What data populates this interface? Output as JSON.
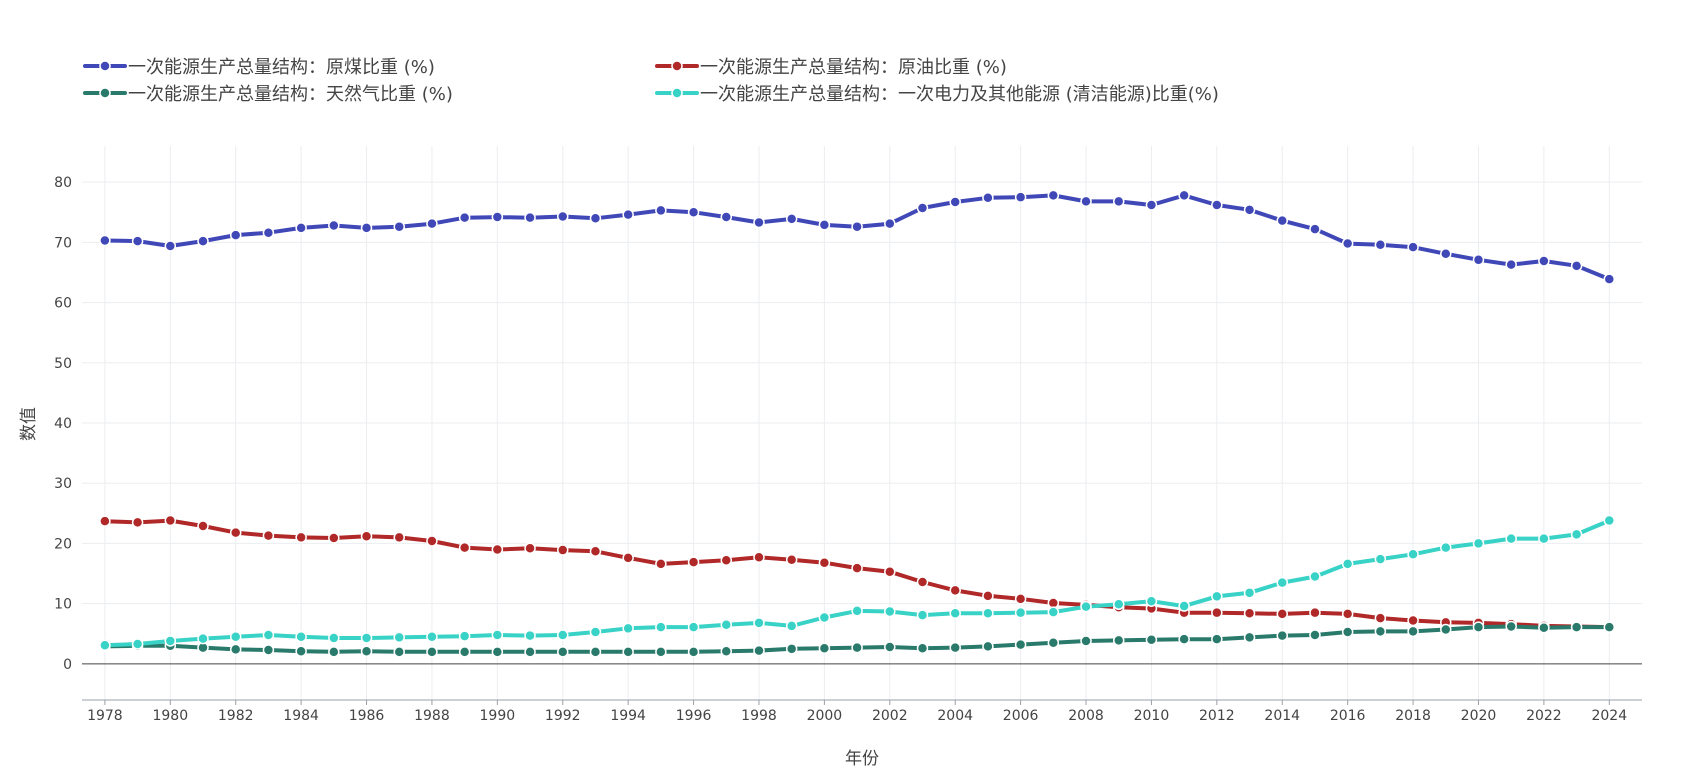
{
  "chart_data": {
    "type": "line",
    "xlabel": "年份",
    "ylabel": "数值",
    "ylim": [
      -6,
      86
    ],
    "yticks": [
      0,
      10,
      20,
      30,
      40,
      50,
      60,
      70,
      80
    ],
    "xlim": [
      1977.3,
      2025.0
    ],
    "xticks": [
      1978,
      1980,
      1982,
      1984,
      1986,
      1988,
      1990,
      1992,
      1994,
      1996,
      1998,
      2000,
      2002,
      2004,
      2006,
      2008,
      2010,
      2012,
      2014,
      2016,
      2018,
      2020,
      2022,
      2024
    ],
    "grid": true,
    "legend_position": "top",
    "x": [
      1978,
      1979,
      1980,
      1981,
      1982,
      1983,
      1984,
      1985,
      1986,
      1987,
      1988,
      1989,
      1990,
      1991,
      1992,
      1993,
      1994,
      1995,
      1996,
      1997,
      1998,
      1999,
      2000,
      2001,
      2002,
      2003,
      2004,
      2005,
      2006,
      2007,
      2008,
      2009,
      2010,
      2011,
      2012,
      2013,
      2014,
      2015,
      2016,
      2017,
      2018,
      2019,
      2020,
      2021,
      2022,
      2023,
      2024
    ],
    "series": [
      {
        "name": "一次能源生产总量结构：原煤比重 (%)",
        "color": "#4048b8",
        "values": [
          70.3,
          70.2,
          69.4,
          70.2,
          71.2,
          71.6,
          72.4,
          72.8,
          72.4,
          72.6,
          73.1,
          74.1,
          74.2,
          74.1,
          74.3,
          74.0,
          74.6,
          75.3,
          75.0,
          74.2,
          73.3,
          73.9,
          72.9,
          72.6,
          73.1,
          75.7,
          76.7,
          77.4,
          77.5,
          77.8,
          76.8,
          76.8,
          76.2,
          77.8,
          76.2,
          75.4,
          73.6,
          72.2,
          69.8,
          69.6,
          69.2,
          68.1,
          67.1,
          66.3,
          66.9,
          66.1,
          63.9
        ]
      },
      {
        "name": "一次能源生产总量结构：原油比重 (%)",
        "color": "#b02828",
        "values": [
          23.7,
          23.5,
          23.8,
          22.9,
          21.8,
          21.3,
          21.0,
          20.9,
          21.2,
          21.0,
          20.4,
          19.3,
          19.0,
          19.2,
          18.9,
          18.7,
          17.6,
          16.6,
          16.9,
          17.2,
          17.7,
          17.3,
          16.8,
          15.9,
          15.3,
          13.6,
          12.2,
          11.3,
          10.8,
          10.1,
          9.8,
          9.4,
          9.2,
          8.5,
          8.5,
          8.4,
          8.3,
          8.5,
          8.3,
          7.6,
          7.2,
          6.9,
          6.8,
          6.6,
          6.3,
          6.2,
          6.1
        ]
      },
      {
        "name": "一次能源生产总量结构：天然气比重 (%)",
        "color": "#2a7a6c",
        "values": [
          2.9,
          3.0,
          3.0,
          2.7,
          2.4,
          2.3,
          2.1,
          2.0,
          2.1,
          2.0,
          2.0,
          2.0,
          2.0,
          2.0,
          2.0,
          2.0,
          2.0,
          2.0,
          2.0,
          2.1,
          2.2,
          2.5,
          2.6,
          2.7,
          2.8,
          2.6,
          2.7,
          2.9,
          3.2,
          3.5,
          3.8,
          3.9,
          4.0,
          4.1,
          4.1,
          4.4,
          4.7,
          4.8,
          5.3,
          5.4,
          5.4,
          5.7,
          6.1,
          6.2,
          6.0,
          6.1,
          6.1
        ]
      },
      {
        "name": "一次能源生产总量结构：一次电力及其他能源 (清洁能源)比重(%)",
        "color": "#38d2c6",
        "values": [
          3.1,
          3.3,
          3.8,
          4.2,
          4.5,
          4.8,
          4.5,
          4.3,
          4.3,
          4.4,
          4.5,
          4.6,
          4.8,
          4.7,
          4.8,
          5.3,
          5.9,
          6.1,
          6.1,
          6.5,
          6.8,
          6.3,
          7.7,
          8.8,
          8.7,
          8.1,
          8.4,
          8.4,
          8.5,
          8.6,
          9.5,
          9.9,
          10.4,
          9.6,
          11.2,
          11.8,
          13.5,
          14.5,
          16.6,
          17.4,
          18.2,
          19.3,
          20.0,
          20.8,
          20.8,
          21.5,
          23.8
        ]
      }
    ]
  }
}
